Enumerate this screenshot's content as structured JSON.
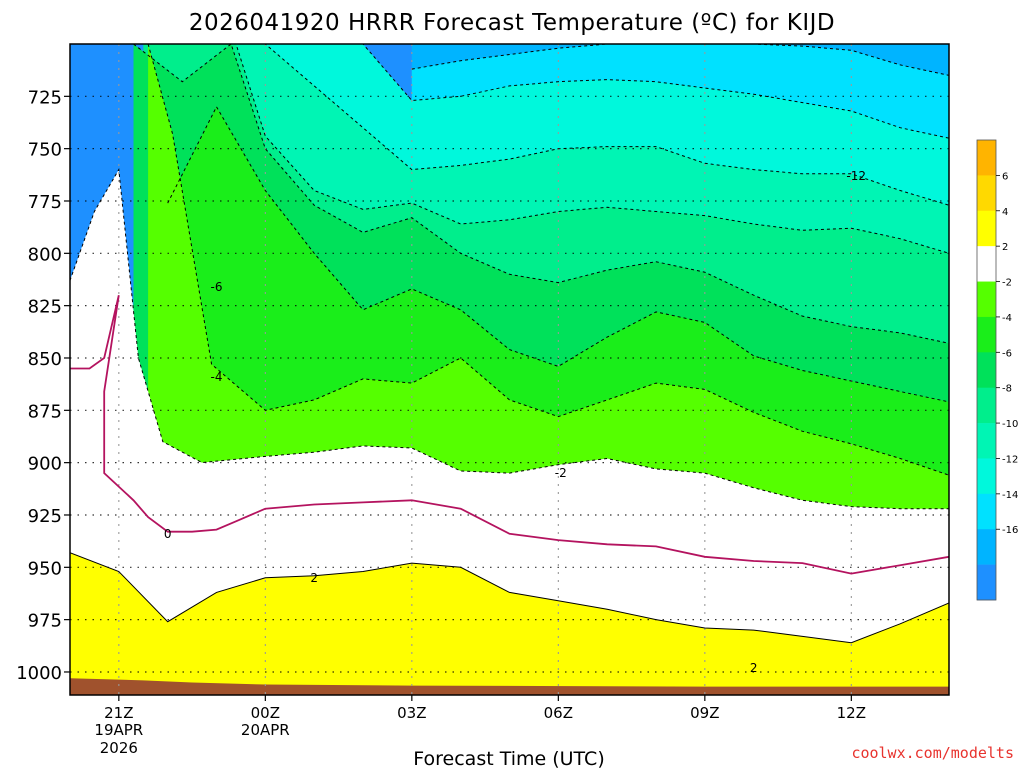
{
  "chart_data": {
    "type": "heatmap",
    "title": "2026041920 HRRR Forecast Temperature (ºC) for KIJD",
    "xlabel": "Forecast Time (UTC)",
    "ylabel": "",
    "credit": "coolwx.com/modelts",
    "x_ticks": [
      {
        "hour": 0,
        "label": "21Z",
        "date": "19APR",
        "year": "2026"
      },
      {
        "hour": 3,
        "label": "00Z",
        "date": "20APR",
        "year": ""
      },
      {
        "hour": 6,
        "label": "03Z",
        "date": "",
        "year": ""
      },
      {
        "hour": 9,
        "label": "06Z",
        "date": "",
        "year": ""
      },
      {
        "hour": 12,
        "label": "09Z",
        "date": "",
        "year": ""
      },
      {
        "hour": 15,
        "label": "12Z",
        "date": "",
        "year": ""
      }
    ],
    "xlim": [
      -1,
      17
    ],
    "y_ticks": [
      725,
      750,
      775,
      800,
      825,
      850,
      875,
      900,
      925,
      950,
      975,
      1000
    ],
    "ylim": [
      700,
      1011
    ],
    "colorbar": {
      "levels": [
        -18,
        -16,
        -14,
        -12,
        -10,
        -8,
        -6,
        -4,
        -2,
        2,
        4,
        6,
        8
      ],
      "labels": [
        "-16",
        "-14",
        "-12",
        "-10",
        "-8",
        "-6",
        "-4",
        "-2",
        "2",
        "4",
        "6"
      ],
      "colors": [
        "#1e90ff",
        "#00b4ff",
        "#00e1ff",
        "#00f8dc",
        "#00f5b4",
        "#00ee8c",
        "#00e15a",
        "#1aee1a",
        "#55ff00",
        "#ffffff",
        "#ffff00",
        "#ffd900",
        "#ffb400"
      ]
    },
    "surface_color": "#a0522d",
    "contour_labels": [
      {
        "text": "-12",
        "hour": 15.1,
        "p": 763
      },
      {
        "text": "-6",
        "hour": 2.0,
        "p": 816
      },
      {
        "text": "-4",
        "hour": 2.0,
        "p": 859
      },
      {
        "text": "-2",
        "hour": 9.05,
        "p": 905
      },
      {
        "text": "0",
        "hour": 1.0,
        "p": 934
      },
      {
        "text": "2",
        "hour": 4.0,
        "p": 955
      },
      {
        "text": "2",
        "hour": 13.0,
        "p": 998
      }
    ],
    "series": [
      {
        "name": "-18 isotherm",
        "level": -18,
        "x": [
          6,
          7,
          8,
          9,
          10,
          11,
          12,
          13,
          14,
          15,
          16,
          17
        ],
        "p": [
          700,
          700,
          700,
          700,
          700,
          700,
          700,
          700,
          700,
          700,
          700,
          700
        ]
      },
      {
        "name": "-16 isotherm",
        "level": -16,
        "x": [
          6,
          7,
          8,
          9,
          10,
          11,
          12,
          13,
          14,
          15,
          16,
          17
        ],
        "p": [
          712,
          708,
          705,
          702,
          700,
          700,
          700,
          700,
          701,
          703,
          710,
          715
        ]
      },
      {
        "name": "-14 isotherm",
        "level": -14,
        "x": [
          3,
          4,
          5,
          6,
          7,
          8,
          9,
          10,
          11,
          12,
          13,
          14,
          15,
          16,
          17
        ],
        "p": [
          700,
          700,
          700,
          727,
          725,
          720,
          718,
          717,
          718,
          721,
          724,
          728,
          732,
          740,
          745
        ]
      },
      {
        "name": "-12 isotherm",
        "level": -12,
        "x": [
          1,
          2,
          3,
          4,
          5,
          6,
          7,
          8,
          9,
          10,
          11,
          12,
          13,
          14,
          15,
          16,
          17
        ],
        "p": [
          700,
          700,
          700,
          720,
          740,
          760,
          758,
          755,
          750,
          749,
          749,
          757,
          760,
          762,
          762,
          770,
          777
        ]
      },
      {
        "name": "-10 isotherm",
        "level": -10,
        "x": [
          0.5,
          1.5,
          2.4,
          3,
          4,
          5,
          6,
          7,
          8,
          9,
          10,
          11,
          12,
          13,
          14,
          15,
          16,
          17
        ],
        "p": [
          700,
          700,
          700,
          744,
          770,
          779,
          776,
          786,
          784,
          780,
          778,
          780,
          782,
          786,
          789,
          788,
          793,
          800
        ]
      },
      {
        "name": "-8 isotherm",
        "level": -8,
        "x": [
          0.3,
          1.3,
          2.3,
          3,
          4,
          5,
          6,
          7,
          8,
          9,
          10,
          11,
          12,
          13,
          14,
          15,
          16,
          17
        ],
        "p": [
          700,
          718,
          700,
          750,
          777,
          790,
          783,
          800,
          810,
          814,
          808,
          804,
          809,
          820,
          830,
          835,
          838,
          843
        ]
      },
      {
        "name": "-6 isotherm",
        "level": -6,
        "x": [
          1.0,
          2.0,
          3,
          4,
          5,
          6,
          7,
          8,
          9,
          10,
          11,
          12,
          13,
          14,
          15,
          16,
          17
        ],
        "p": [
          776,
          730,
          770,
          800,
          827,
          817,
          827,
          846,
          854,
          840,
          828,
          833,
          849,
          856,
          861,
          866,
          871
        ]
      },
      {
        "name": "-4 isotherm",
        "level": -4,
        "x": [
          0.6,
          1.1,
          1.9,
          3,
          4,
          5,
          6,
          7,
          8,
          9,
          10,
          11,
          12,
          13,
          14,
          15,
          16,
          17
        ],
        "p": [
          700,
          743,
          853,
          875,
          870,
          860,
          862,
          850,
          870,
          878,
          870,
          862,
          865,
          876,
          885,
          891,
          898,
          906
        ]
      },
      {
        "name": "-2 isotherm",
        "level": -2,
        "x": [
          -1,
          -0.5,
          0,
          0.4,
          0.9,
          1.7,
          3,
          4,
          5,
          6,
          7,
          8,
          9,
          10,
          11,
          12,
          13,
          14,
          15,
          16,
          17
        ],
        "p": [
          813,
          780,
          760,
          850,
          890,
          900,
          897,
          895,
          892,
          893,
          904,
          905,
          901,
          898,
          903,
          905,
          912,
          918,
          921,
          922,
          922
        ]
      },
      {
        "name": "0 isotherm",
        "level": 0,
        "x": [
          -1,
          -0.6,
          -0.3,
          0.0,
          -0.3,
          -0.3,
          0.3,
          0.6,
          1.0,
          1.5,
          2.0,
          2.4,
          3.0,
          4.0,
          5.0,
          6.0,
          7.0,
          8.0,
          9.0,
          10.0,
          11.0,
          12.0,
          13.0,
          14.0,
          15.0,
          16.0,
          17.0
        ],
        "p": [
          855,
          855,
          850,
          820,
          866,
          905,
          918,
          926,
          933,
          933,
          932,
          928,
          922,
          920,
          919,
          918,
          922,
          934,
          937,
          939,
          940,
          945,
          947,
          948,
          953,
          949,
          945
        ]
      },
      {
        "name": "2 isotherm",
        "level": 2,
        "x": [
          -1,
          0,
          1.0,
          2.0,
          3.0,
          4.0,
          5.0,
          6.0,
          7.0,
          8.0,
          9.0,
          10.0,
          11.0,
          12.0,
          13.0,
          14.0,
          15.0,
          16.0,
          17.0
        ],
        "p": [
          943,
          952,
          976,
          962,
          955,
          954,
          952,
          948,
          950,
          962,
          966,
          970,
          975,
          979,
          980,
          983,
          986,
          977,
          967
        ]
      }
    ]
  }
}
